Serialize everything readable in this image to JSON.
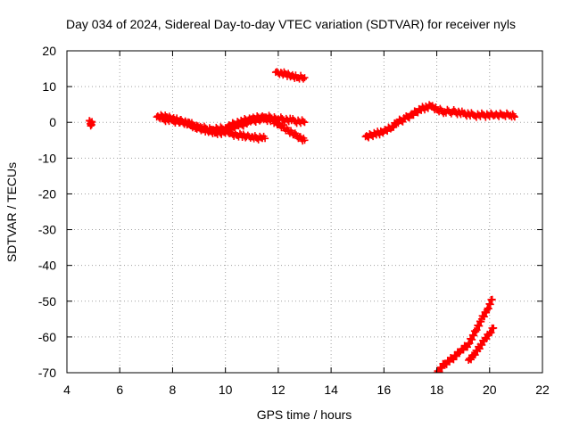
{
  "chart_data": {
    "type": "scatter",
    "title": "Day 034 of 2024, Sidereal Day-to-day VTEC variation (SDTVAR) for receiver nyls",
    "xlabel": "GPS time / hours",
    "ylabel": "SDTVAR / TECUs",
    "xlim": [
      4,
      22
    ],
    "ylim": [
      -70,
      20
    ],
    "xticks": [
      "4",
      "6",
      "8",
      "10",
      "12",
      "14",
      "16",
      "18",
      "20",
      "22"
    ],
    "yticks": [
      "20",
      "10",
      "0",
      "-10",
      "-20",
      "-30",
      "-40",
      "-50",
      "-60",
      "-70"
    ],
    "grid": true,
    "marker_color": "#ff0000",
    "series": [
      {
        "name": "blob-4.9h",
        "x": [
          4.85,
          4.9,
          4.95,
          4.9
        ],
        "y": [
          0.5,
          -0.5,
          0.2,
          -1.0
        ]
      },
      {
        "name": "arc-7.4-11.5h",
        "x": [
          7.4,
          7.6,
          7.8,
          8.0,
          8.2,
          8.4,
          8.6,
          8.8,
          9.0,
          9.2,
          9.4,
          9.6,
          9.8,
          10.0,
          10.2,
          10.4,
          10.6,
          10.8,
          11.0,
          11.2,
          11.4,
          11.5
        ],
        "y": [
          1.5,
          1.8,
          1.5,
          1.0,
          0.5,
          0.0,
          -0.5,
          -1.0,
          -1.5,
          -2.0,
          -2.5,
          -3.0,
          -3.0,
          -3.0,
          -3.0,
          -3.5,
          -3.5,
          -4.0,
          -4.0,
          -4.5,
          -4.5,
          -4.5
        ]
      },
      {
        "name": "arc-7.6-12.5h",
        "x": [
          7.6,
          8.0,
          8.5,
          9.0,
          9.5,
          10.0,
          10.5,
          11.0,
          11.5,
          11.8,
          12.0,
          12.2,
          12.4,
          12.6,
          12.8,
          13.0
        ],
        "y": [
          1.0,
          0.5,
          0.0,
          -1.5,
          -2.0,
          -2.0,
          -1.0,
          0.5,
          1.0,
          0.5,
          -0.5,
          -1.5,
          -2.5,
          -3.5,
          -4.0,
          -5.0
        ]
      },
      {
        "name": "arc-9.5-13h",
        "x": [
          9.5,
          10.0,
          10.5,
          11.0,
          11.5,
          12.0,
          12.5,
          13.0
        ],
        "y": [
          -2.5,
          -1.5,
          0.0,
          1.0,
          1.5,
          1.0,
          0.5,
          0.0
        ]
      },
      {
        "name": "arc-12-13h",
        "x": [
          11.9,
          12.1,
          12.3,
          12.5,
          12.7,
          12.9,
          13.0
        ],
        "y": [
          14.0,
          14.0,
          13.5,
          13.0,
          12.5,
          12.5,
          12.5
        ]
      },
      {
        "name": "arc-15.3-21h",
        "x": [
          15.3,
          15.5,
          15.8,
          16.0,
          16.3,
          16.5,
          16.8,
          17.0,
          17.2,
          17.5,
          17.8,
          18.0,
          18.3,
          18.6,
          19.0,
          19.4,
          19.8,
          20.2,
          20.5,
          20.8,
          20.95
        ],
        "y": [
          -4.0,
          -3.5,
          -3.0,
          -2.5,
          -1.5,
          0.0,
          1.0,
          2.0,
          3.0,
          4.0,
          4.5,
          3.5,
          3.0,
          3.0,
          2.5,
          2.0,
          2.0,
          2.0,
          2.0,
          2.0,
          1.5
        ]
      },
      {
        "name": "steep-18-20h",
        "x": [
          18.0,
          18.3,
          18.6,
          18.9,
          19.2,
          19.5,
          19.7,
          19.9,
          20.1
        ],
        "y": [
          -70.0,
          -67.5,
          -66.0,
          -64.0,
          -62.0,
          -58.0,
          -55.0,
          -52.5,
          -49.5
        ]
      },
      {
        "name": "steep-19.2-20.2h",
        "x": [
          19.2,
          19.4,
          19.6,
          19.8,
          20.0,
          20.15
        ],
        "y": [
          -66.5,
          -65.0,
          -63.0,
          -61.0,
          -59.0,
          -57.5
        ]
      }
    ]
  }
}
